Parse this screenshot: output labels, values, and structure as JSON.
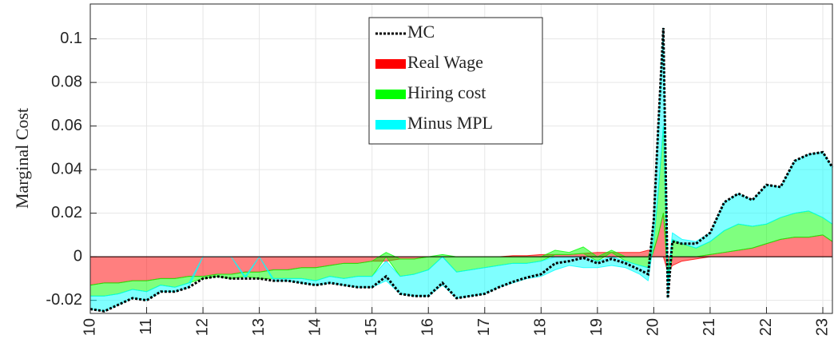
{
  "chart_data": {
    "type": "stacked-area",
    "y_label": "Marginal Cost",
    "x": [
      10,
      10.25,
      10.5,
      10.75,
      11,
      11.25,
      11.5,
      11.75,
      12,
      12.25,
      12.5,
      12.75,
      13,
      13.25,
      13.5,
      13.75,
      14,
      14.25,
      14.5,
      14.75,
      15,
      15.25,
      15.5,
      15.75,
      16,
      16.25,
      16.5,
      16.75,
      17,
      17.25,
      17.5,
      17.75,
      18,
      18.25,
      18.5,
      18.75,
      19,
      19.25,
      19.5,
      19.75,
      19.9,
      20,
      20.08,
      20.17,
      20.25,
      20.33,
      20.5,
      20.75,
      21,
      21.25,
      21.5,
      21.75,
      22,
      22.25,
      22.5,
      22.75,
      23,
      23.17
    ],
    "line": {
      "name": "MC",
      "color": "#000000",
      "values": [
        -0.024,
        -0.025,
        -0.022,
        -0.019,
        -0.02,
        -0.016,
        -0.016,
        -0.014,
        -0.01,
        -0.009,
        -0.01,
        -0.01,
        -0.01,
        -0.011,
        -0.011,
        -0.012,
        -0.013,
        -0.012,
        -0.013,
        -0.014,
        -0.014,
        -0.009,
        -0.017,
        -0.018,
        -0.018,
        -0.012,
        -0.019,
        -0.018,
        -0.017,
        -0.014,
        -0.0115,
        -0.0095,
        -0.008,
        -0.003,
        -0.002,
        -0.0005,
        -0.003,
        -0.001,
        -0.003,
        -0.006,
        -0.008,
        0.017,
        0.06,
        0.105,
        -0.019,
        0.007,
        0.006,
        0.006,
        0.011,
        0.025,
        0.029,
        0.026,
        0.033,
        0.032,
        0.044,
        0.047,
        0.048,
        0.041
      ]
    },
    "series": [
      {
        "name": "Real Wage",
        "color": "#ff0000",
        "values": [
          -0.013,
          -0.012,
          -0.012,
          -0.011,
          -0.011,
          -0.01,
          -0.01,
          -0.009,
          -0.009,
          -0.008,
          -0.008,
          -0.007,
          -0.007,
          -0.006,
          -0.006,
          -0.005,
          -0.005,
          -0.004,
          -0.003,
          -0.003,
          -0.002,
          -0.002,
          -0.001,
          -0.001,
          0,
          0,
          0,
          0,
          0,
          0,
          0.0005,
          0.0005,
          0.001,
          0.001,
          0.001,
          0.0015,
          0.002,
          0.002,
          0.002,
          0.002,
          0.003,
          0.003,
          0.01,
          0.02,
          -0.007,
          -0.004,
          -0.002,
          -0.001,
          0.001,
          0.002,
          0.003,
          0.004,
          0.006,
          0.008,
          0.009,
          0.009,
          0.01,
          0.007
        ]
      },
      {
        "name": "Hiring cost",
        "color": "#00ff00",
        "values": [
          -0.005,
          -0.006,
          -0.005,
          -0.004,
          -0.005,
          -0.003,
          -0.004,
          -0.003,
          -0.001,
          -0.001,
          -0.002,
          -0.002,
          -0.003,
          -0.004,
          -0.004,
          -0.005,
          -0.006,
          -0.005,
          -0.007,
          -0.006,
          -0.007,
          0.002,
          -0.008,
          -0.007,
          -0.006,
          0.001,
          -0.007,
          -0.006,
          -0.005,
          -0.004,
          -0.003,
          -0.003,
          -0.002,
          0.002,
          0.001,
          0.003,
          -0.002,
          0.001,
          -0.002,
          -0.004,
          -0.005,
          0.004,
          0.02,
          0.04,
          -0.004,
          0.008,
          0.006,
          0.004,
          0.006,
          0.01,
          0.012,
          0.01,
          0.009,
          0.01,
          0.011,
          0.012,
          0.008,
          0.008
        ]
      },
      {
        "name": "Minus MPL",
        "color": "#00ffff",
        "values": [
          -0.006,
          -0.007,
          -0.005,
          -0.004,
          -0.004,
          -0.003,
          -0.002,
          -0.002,
          0,
          0,
          0,
          -0.001,
          0,
          -0.001,
          -0.001,
          -0.002,
          -0.002,
          -0.003,
          -0.003,
          -0.005,
          -0.005,
          -0.009,
          -0.008,
          -0.01,
          -0.012,
          -0.013,
          -0.012,
          -0.012,
          -0.012,
          -0.01,
          -0.009,
          -0.007,
          -0.007,
          -0.006,
          -0.004,
          -0.005,
          -0.003,
          -0.004,
          -0.003,
          -0.004,
          -0.006,
          0.01,
          0.03,
          0.045,
          -0.008,
          0.003,
          0.002,
          0.003,
          0.004,
          0.013,
          0.014,
          0.012,
          0.018,
          0.014,
          0.024,
          0.026,
          0.03,
          0.026
        ]
      }
    ],
    "xlim": [
      10,
      23.17
    ],
    "ylim": [
      -0.026,
      0.116
    ],
    "xticks": [
      10,
      11,
      12,
      13,
      14,
      15,
      16,
      17,
      18,
      19,
      20,
      21,
      22,
      23
    ],
    "yticks": [
      -0.02,
      0,
      0.02,
      0.04,
      0.06,
      0.08,
      0.1
    ],
    "grid": true,
    "legend": "upper center"
  }
}
